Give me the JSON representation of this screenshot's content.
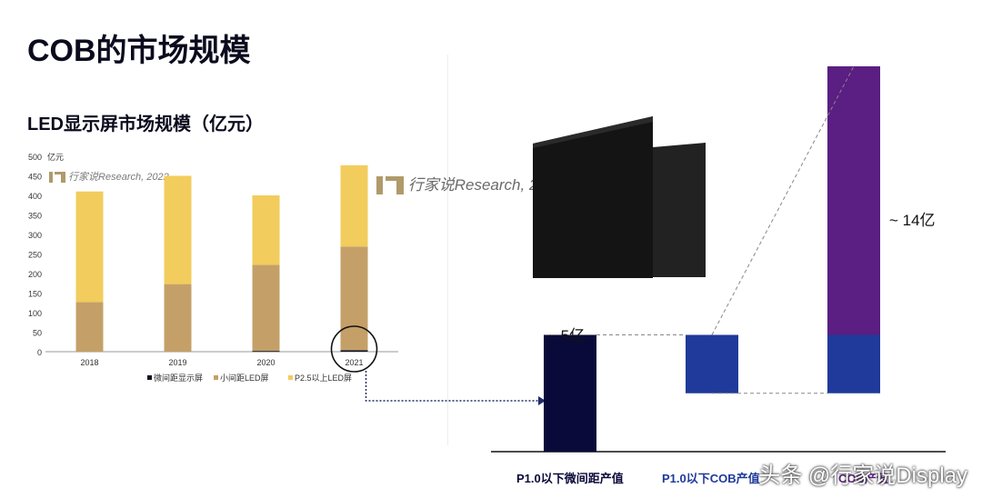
{
  "slide": {
    "title": "COB的市场规模",
    "chart_title": "LED显示屏市场规模（亿元）",
    "watermark": "行家说Research, 2022",
    "credit": "头条 @行家说Display"
  },
  "colors": {
    "micro": "#111122",
    "small_pitch": "#c4a068",
    "p25": "#f2cc5c",
    "navy": "#0a0a3a",
    "blue": "#1f3a9a",
    "purple": "#5b1e82"
  },
  "chart_data": [
    {
      "type": "bar",
      "stacked": true,
      "title": "LED显示屏市场规模（亿元）",
      "ylabel": "亿元",
      "ylim": [
        0,
        500
      ],
      "yticks": [
        0,
        50,
        100,
        150,
        200,
        250,
        300,
        350,
        400,
        450,
        500
      ],
      "categories": [
        "2018",
        "2019",
        "2020",
        "2021"
      ],
      "series": [
        {
          "name": "微间距显示屏",
          "values": [
            0,
            0,
            2,
            4
          ]
        },
        {
          "name": "小间距LED屏",
          "values": [
            127,
            173,
            220,
            265
          ]
        },
        {
          "name": "P2.5以上LED屏",
          "values": [
            283,
            277,
            178,
            208
          ]
        }
      ],
      "legend": "bottom",
      "grid": false
    },
    {
      "type": "bar",
      "waterfall": true,
      "categories": [
        "P1.0以下微间距产值",
        "P1.0以下COB产值",
        "COB产值"
      ],
      "annotations": [
        "~ 5亿",
        "~ 14亿"
      ],
      "bars": [
        {
          "category": "P1.0以下微间距产值",
          "value": 5,
          "base": 0
        },
        {
          "category": "P1.0以下COB产值",
          "value": 2.5,
          "base": 2.5
        },
        {
          "category": "COB产值",
          "value": 14,
          "base": 2.5
        }
      ]
    }
  ]
}
